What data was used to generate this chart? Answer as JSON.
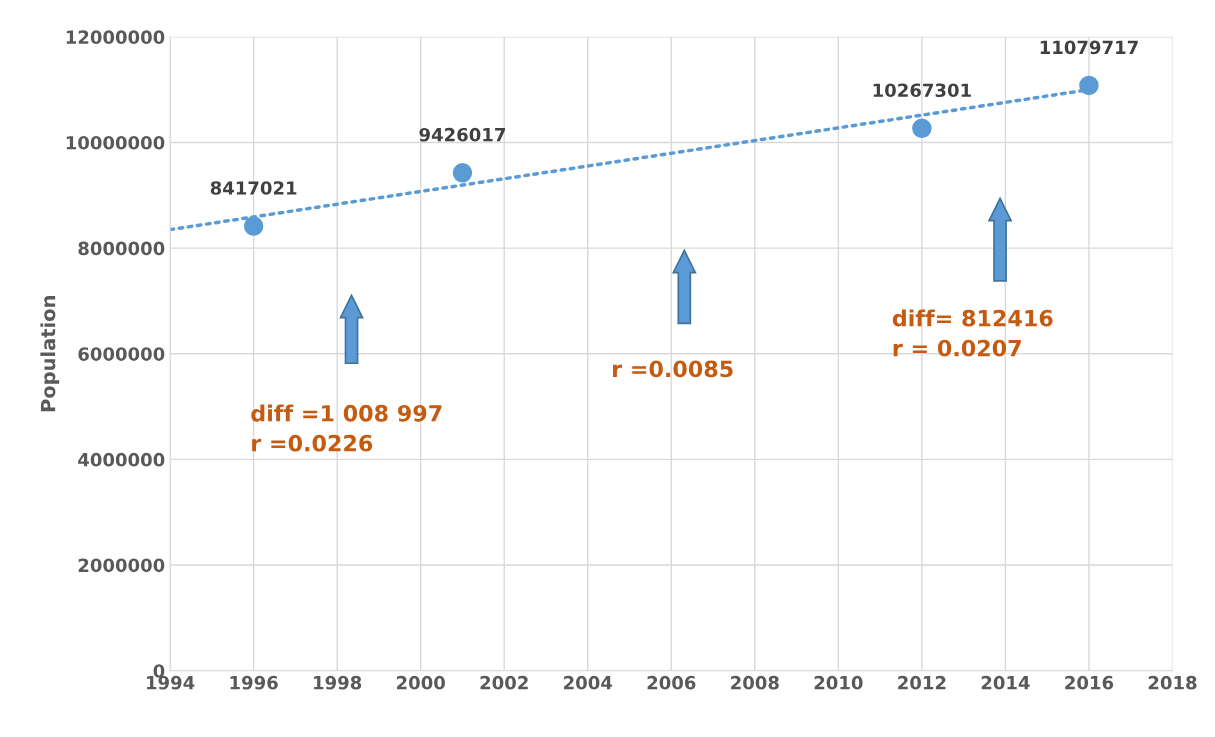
{
  "chart_data": {
    "type": "scatter",
    "ylabel": "Population",
    "x": [
      1996,
      2001,
      2012,
      2016
    ],
    "series": [
      {
        "color": "#5b9bd5",
        "values": [
          8417021,
          9426017,
          10267301,
          11079717
        ],
        "marker": "circle",
        "value_labels": [
          "8417021",
          "9426017",
          "10267301",
          "11079717"
        ]
      },
      {
        "type": "line",
        "color": "#5b9bd5",
        "x": [
          1994,
          2016
        ],
        "values": [
          8350000,
          11000000
        ],
        "line_style": "dotted",
        "marker": "none"
      }
    ],
    "xlim": [
      1994,
      2018
    ],
    "xticks": [
      1994,
      1996,
      1998,
      2000,
      2002,
      2004,
      2006,
      2008,
      2010,
      2012,
      2014,
      2016,
      2018
    ],
    "ylim": [
      0,
      12000000
    ],
    "yticks": [
      0,
      2000000,
      4000000,
      6000000,
      8000000,
      10000000,
      12000000
    ],
    "grid": true,
    "legend": false,
    "annotations": [
      "diff =1 008 997\nr =0.0226",
      "r =0.0085",
      "diff= 812416\nr = 0.0207"
    ]
  }
}
